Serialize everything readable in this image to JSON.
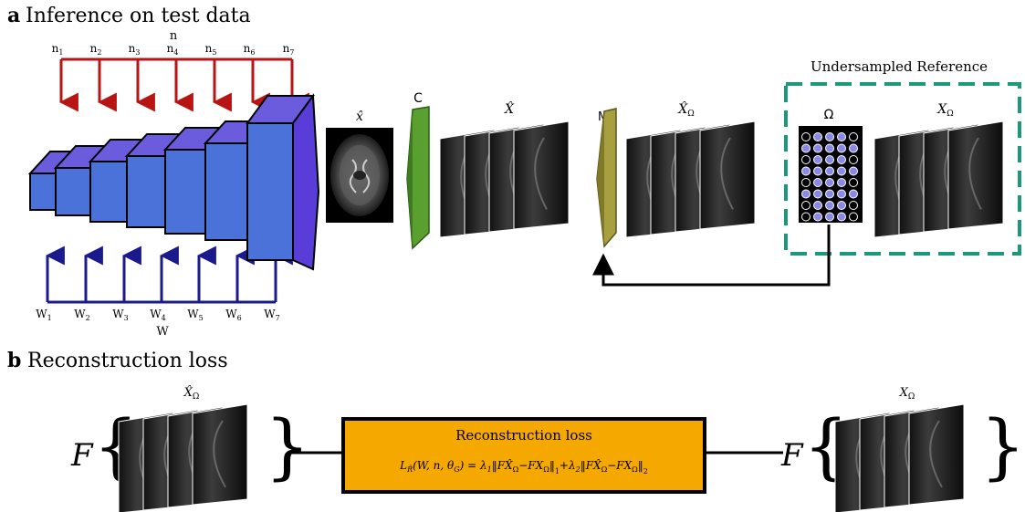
{
  "panel_a": {
    "letter": "a",
    "title": "Inference on test data",
    "noise_group_label": "n",
    "noise_inputs": [
      "n",
      "n",
      "n",
      "n",
      "n",
      "n",
      "n"
    ],
    "noise_subs": [
      "1",
      "2",
      "3",
      "4",
      "5",
      "6",
      "7"
    ],
    "weight_group_label": "W",
    "weight_inputs": [
      "W",
      "W",
      "W",
      "W",
      "W",
      "W",
      "W"
    ],
    "weight_subs": [
      "1",
      "2",
      "3",
      "4",
      "5",
      "6",
      "7"
    ],
    "output_label": "x̂",
    "coil_op_label": "C",
    "coil_images_label": "X̂",
    "mask_op_label": "M",
    "mask_op_sub": "Ω",
    "masked_images_label": "X̂",
    "masked_images_sub": "Ω",
    "reference_box_title": "Undersampled Reference",
    "mask_label": "Ω",
    "reference_images_label": "X",
    "reference_images_sub": "Ω"
  },
  "panel_b": {
    "letter": "b",
    "title": "Reconstruction loss",
    "left_images_label": "X̂",
    "left_images_sub": "Ω",
    "right_images_label": "X",
    "right_images_sub": "Ω",
    "fourier_op": "F",
    "loss_box_title": "Reconstruction loss",
    "loss_formula_lhs": "L",
    "loss_formula_lhs_sub": "R̂",
    "loss_formula_args": "(W, n, θ",
    "loss_formula_args_sub": "G",
    "loss_formula_args_end": ") = λ",
    "loss_formula_l1": "1",
    "loss_formula_term1": "‖FX̂",
    "loss_formula_term1_sub": "Ω",
    "loss_formula_mid1": "−FX",
    "loss_formula_mid1_sub": "Ω",
    "loss_formula_norm1": "‖",
    "loss_formula_norm1_sub": "1",
    "loss_formula_plus": "+λ",
    "loss_formula_l2": "2",
    "loss_formula_term2": "‖FX̂",
    "loss_formula_term2_sub": "Ω",
    "loss_formula_mid2": "−FX",
    "loss_formula_mid2_sub": "Ω",
    "loss_formula_norm2": "‖",
    "loss_formula_norm2_sub": "2"
  },
  "colors": {
    "noise_arrows": "#b81414",
    "weight_arrows": "#1a1a8c",
    "network_front": "#4a72d8",
    "network_top": "#6a5cdc",
    "coil_op": "#5aa030",
    "mask_op": "#a8a040",
    "reference_box": "#1a9a7a",
    "loss_box": "#f5a800",
    "mask_dot": "#8a8ae6"
  },
  "mask_pattern": [
    [
      0,
      1,
      1,
      1,
      0
    ],
    [
      1,
      1,
      1,
      1,
      1
    ],
    [
      0,
      1,
      1,
      1,
      0
    ],
    [
      1,
      1,
      1,
      1,
      1
    ],
    [
      0,
      1,
      1,
      1,
      0
    ],
    [
      1,
      1,
      1,
      1,
      1
    ],
    [
      0,
      1,
      1,
      1,
      0
    ],
    [
      0,
      1,
      1,
      1,
      0
    ]
  ]
}
